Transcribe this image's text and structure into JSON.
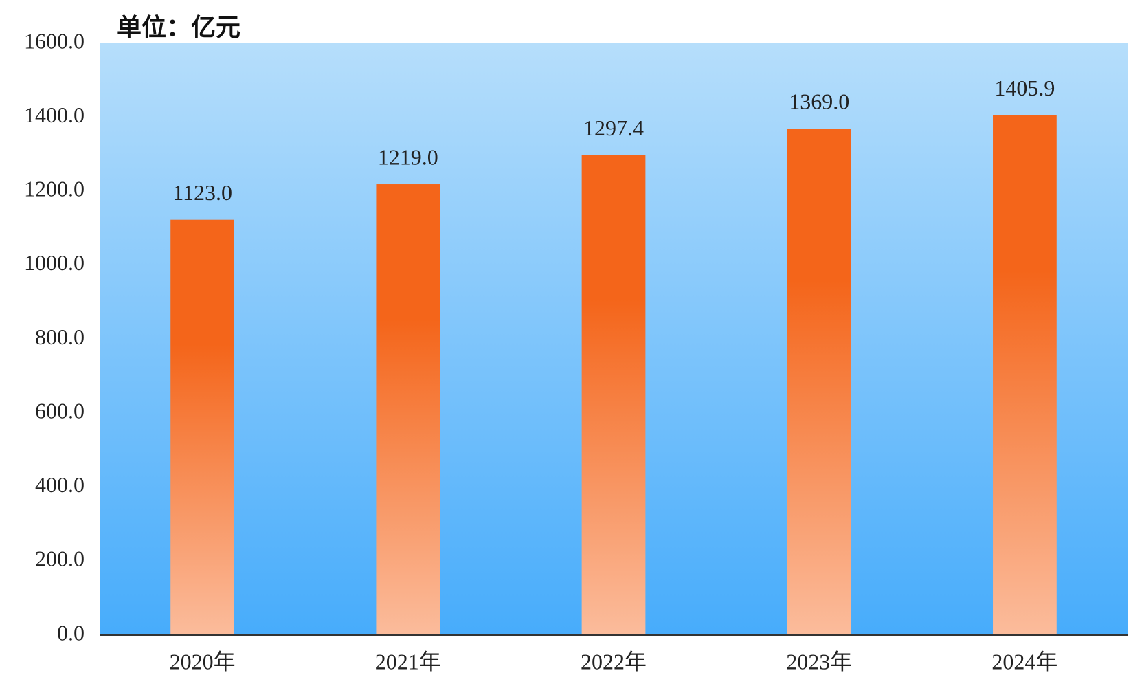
{
  "chart_data": {
    "type": "bar",
    "title": "单位：亿元",
    "categories": [
      "2020年",
      "2021年",
      "2022年",
      "2023年",
      "2024年"
    ],
    "values": [
      1123,
      1219,
      1297.4,
      1369,
      1405.9
    ],
    "value_labels": [
      "1123.0",
      "1219.0",
      "1297.4",
      "1369.0",
      "1405.9"
    ],
    "color": "#f4651a",
    "ylim": [
      0,
      1600
    ],
    "yticks": [
      {
        "value": 0,
        "label": "0.0"
      },
      {
        "value": 200,
        "label": "200.0"
      },
      {
        "value": 400,
        "label": "400.0"
      },
      {
        "value": 600,
        "label": "600.0"
      },
      {
        "value": 800,
        "label": "800.0"
      },
      {
        "value": 1000,
        "label": "1000.0"
      },
      {
        "value": 1200,
        "label": "1200.0"
      },
      {
        "value": 1400,
        "label": "1400.0"
      },
      {
        "value": 1600,
        "label": "1600.0"
      }
    ],
    "grid": false
  }
}
